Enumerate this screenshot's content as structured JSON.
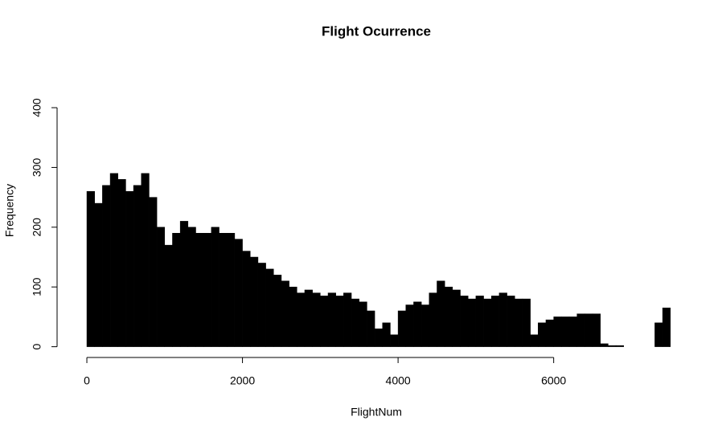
{
  "chart_data": {
    "type": "histogram",
    "title": "Flight Ocurrence",
    "x_label": "FlightNum",
    "y_label": "Frequency",
    "bins": [
      0,
      100,
      200,
      300,
      400,
      500,
      600,
      700,
      800,
      900,
      1000,
      1100,
      1200,
      1300,
      1400,
      1500,
      1600,
      1700,
      1800,
      1900,
      2000,
      2100,
      2200,
      2300,
      2400,
      2500,
      2600,
      2700,
      2800,
      2900,
      3000,
      3100,
      3200,
      3300,
      3400,
      3500,
      3600,
      3700,
      3800,
      3900,
      4000,
      4100,
      4200,
      4300,
      4400,
      4500,
      4600,
      4700,
      4800,
      4900,
      5000,
      5100,
      5200,
      5300,
      5400,
      5500,
      5600,
      5700,
      5800,
      5900,
      6000,
      6100,
      6200,
      6300,
      6400,
      6500,
      6600,
      6700,
      6800,
      6900,
      7000,
      7100,
      7200,
      7300,
      7400,
      7500
    ],
    "values": [
      260,
      240,
      270,
      290,
      280,
      260,
      270,
      290,
      250,
      200,
      170,
      190,
      210,
      200,
      190,
      190,
      200,
      190,
      190,
      180,
      160,
      150,
      140,
      130,
      120,
      110,
      100,
      90,
      95,
      90,
      85,
      90,
      85,
      90,
      80,
      75,
      60,
      30,
      40,
      20,
      60,
      70,
      75,
      70,
      90,
      110,
      100,
      95,
      85,
      80,
      85,
      80,
      85,
      90,
      85,
      80,
      80,
      20,
      40,
      45,
      50,
      50,
      50,
      55,
      55,
      55,
      5,
      2,
      2,
      0,
      0,
      0,
      0,
      40,
      65
    ],
    "color": "#000000",
    "xlim": [
      -300,
      7750
    ],
    "ylim": [
      -18,
      474
    ],
    "xticks": [
      0,
      2000,
      4000,
      6000
    ],
    "yticks": [
      0,
      100,
      200,
      300,
      400
    ]
  }
}
